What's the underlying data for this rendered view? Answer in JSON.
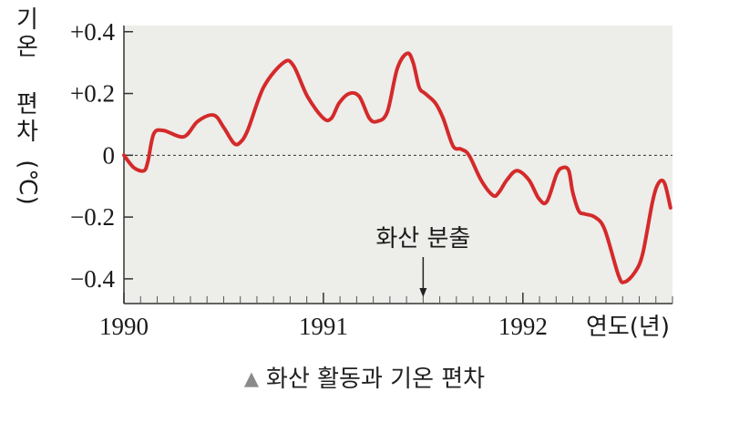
{
  "chart_data": {
    "type": "line",
    "title": "",
    "ylabel_chars": [
      "기",
      "온",
      "",
      "편",
      "차"
    ],
    "ylabel_unit": "(℃)",
    "xlabel": "연도(년)",
    "ylim": [
      -0.48,
      0.42
    ],
    "xlim": [
      1990.0,
      1992.75
    ],
    "yticks": [
      {
        "value": 0.4,
        "label": "+0.4"
      },
      {
        "value": 0.2,
        "label": "+0.2"
      },
      {
        "value": 0.0,
        "label": "0"
      },
      {
        "value": -0.2,
        "label": "−0.2"
      },
      {
        "value": -0.4,
        "label": "−0.4"
      }
    ],
    "xticks": [
      {
        "value": 1990,
        "label": "1990"
      },
      {
        "value": 1991,
        "label": "1991"
      },
      {
        "value": 1992,
        "label": "1992"
      }
    ],
    "zero_line": "dashed",
    "background": "#ededea",
    "line_color": "#d42a2a",
    "annotation": {
      "text": "화산 분출",
      "x": 1991.5
    },
    "series": [
      {
        "name": "",
        "x": [
          1990.0,
          1990.05,
          1990.1,
          1990.12,
          1990.15,
          1990.2,
          1990.3,
          1990.37,
          1990.45,
          1990.5,
          1990.55,
          1990.58,
          1990.62,
          1990.7,
          1990.8,
          1990.85,
          1990.92,
          1991.0,
          1991.04,
          1991.08,
          1991.13,
          1991.18,
          1991.23,
          1991.27,
          1991.32,
          1991.37,
          1991.42,
          1991.45,
          1991.48,
          1991.51,
          1991.56,
          1991.6,
          1991.65,
          1991.69,
          1991.73,
          1991.79,
          1991.85,
          1991.88,
          1991.92,
          1991.97,
          1992.03,
          1992.08,
          1992.12,
          1992.17,
          1992.2,
          1992.23,
          1992.25,
          1992.28,
          1992.31,
          1992.36,
          1992.41,
          1992.48,
          1992.51,
          1992.56,
          1992.6,
          1992.65,
          1992.68,
          1992.71,
          1992.74
        ],
        "values": [
          0.0,
          -0.04,
          -0.05,
          -0.02,
          0.07,
          0.08,
          0.06,
          0.11,
          0.13,
          0.09,
          0.04,
          0.04,
          0.08,
          0.22,
          0.3,
          0.29,
          0.19,
          0.12,
          0.12,
          0.17,
          0.2,
          0.19,
          0.12,
          0.11,
          0.14,
          0.28,
          0.33,
          0.3,
          0.22,
          0.2,
          0.17,
          0.12,
          0.03,
          0.02,
          0.0,
          -0.08,
          -0.13,
          -0.12,
          -0.08,
          -0.05,
          -0.08,
          -0.14,
          -0.15,
          -0.06,
          -0.04,
          -0.05,
          -0.12,
          -0.18,
          -0.19,
          -0.2,
          -0.24,
          -0.39,
          -0.41,
          -0.38,
          -0.32,
          -0.15,
          -0.09,
          -0.09,
          -0.17
        ]
      }
    ]
  },
  "caption": {
    "marker": "▲",
    "text": "화산 활동과 기온 편차"
  }
}
